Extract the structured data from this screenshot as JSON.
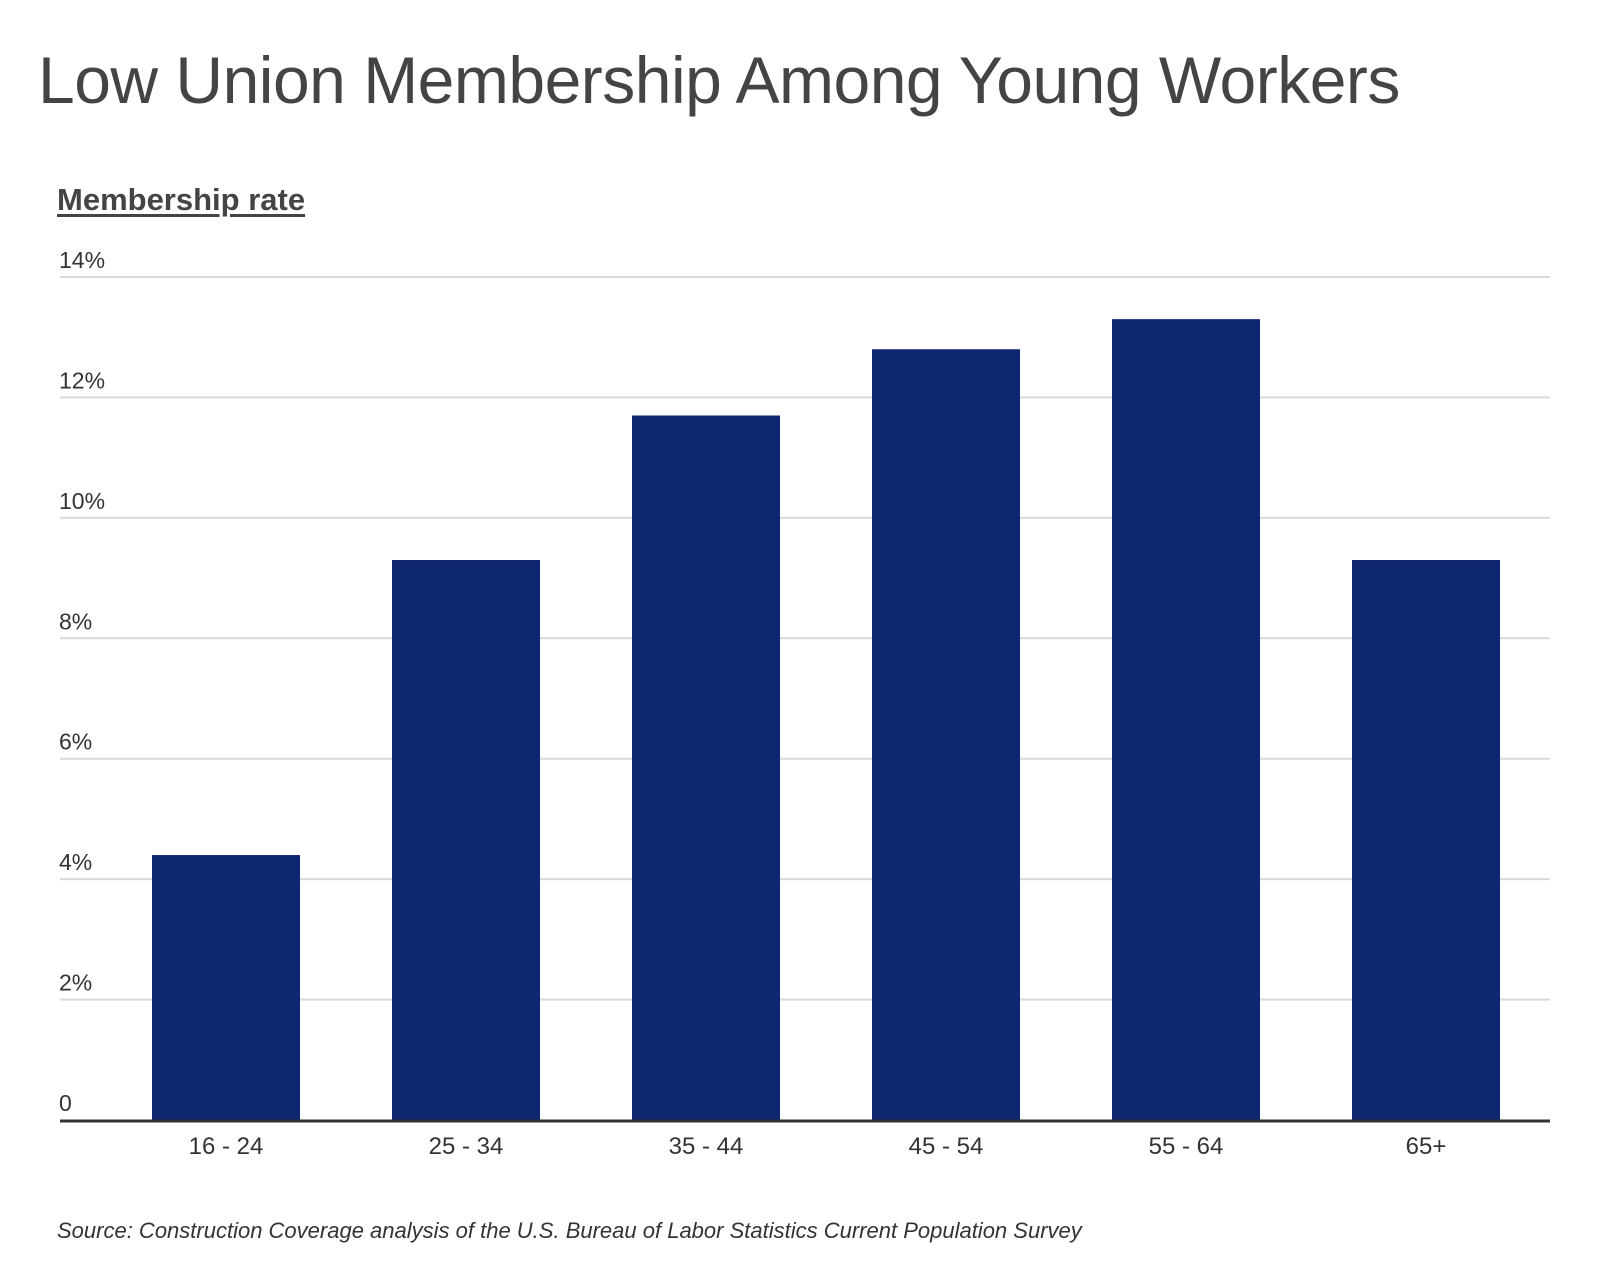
{
  "chart_data": {
    "type": "bar",
    "title": "Low Union Membership Among Young Workers",
    "ylabel": "Membership rate",
    "xlabel": "",
    "categories": [
      "16 - 24",
      "25 - 34",
      "35 - 44",
      "45 - 54",
      "55 - 64",
      "65+"
    ],
    "values": [
      4.4,
      9.3,
      11.7,
      12.8,
      13.3,
      9.3
    ],
    "ylim": [
      0,
      14
    ],
    "yticks": [
      0,
      2,
      4,
      6,
      8,
      10,
      12,
      14
    ],
    "ytick_labels": [
      "0",
      "2%",
      "4%",
      "6%",
      "8%",
      "10%",
      "12%",
      "14%"
    ],
    "grid": true,
    "bar_color": "#0f2670",
    "source": "Source: Construction Coverage analysis of the U.S. Bureau of Labor Statistics Current Population Survey"
  }
}
